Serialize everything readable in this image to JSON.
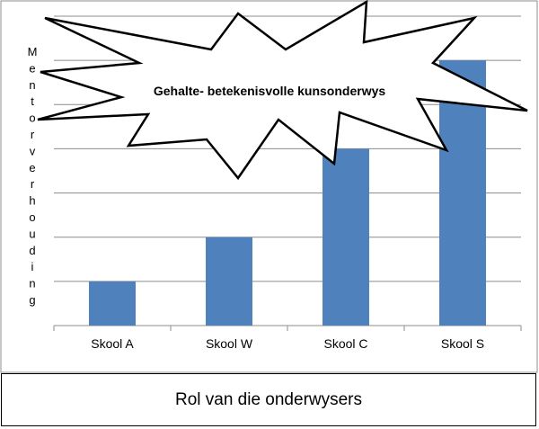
{
  "chart_data": {
    "type": "bar",
    "categories": [
      "Skool A",
      "Skool W",
      "Skool C",
      "Skool S"
    ],
    "values": [
      1,
      2,
      4,
      6
    ],
    "ylabel": "Mentorverhouding",
    "xlabel": "",
    "ylim": [
      0,
      7
    ],
    "grid": true,
    "bar_color": "#4f81bd",
    "annotation": "Gehalte- betekenisvolle kunsonderwys"
  },
  "caption": "Rol van die onderwysers"
}
